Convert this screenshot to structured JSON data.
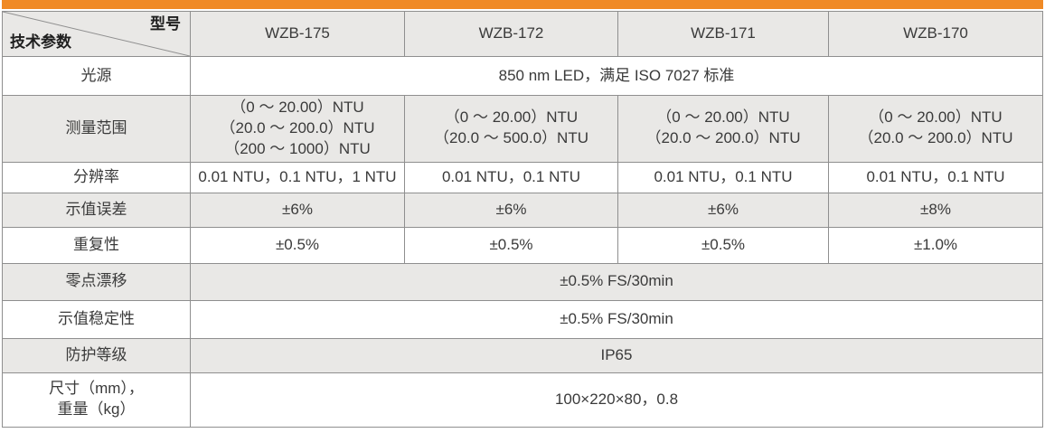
{
  "accent_color": "#F08A25",
  "table": {
    "corner": {
      "top_right": "型号",
      "bottom_left": "技术参数"
    },
    "columns": [
      "WZB-175",
      "WZB-172",
      "WZB-171",
      "WZB-170"
    ],
    "rows": [
      {
        "label_lines": [
          "光源"
        ],
        "span": true,
        "value_lines": [
          "850 nm LED，满足 ISO 7027 标准"
        ],
        "shaded": false
      },
      {
        "label_lines": [
          "测量范围"
        ],
        "span": false,
        "values": [
          [
            "（0 ～ 20.00）NTU",
            "（20.0 ～ 200.0）NTU",
            "（200 ～ 1000）NTU"
          ],
          [
            "（0 ～ 20.00）NTU",
            "（20.0 ～ 500.0）NTU"
          ],
          [
            "（0 ～ 20.00）NTU",
            "（20.0 ～ 200.0）NTU"
          ],
          [
            "（0 ～ 20.00）NTU",
            "（20.0 ～ 200.0）NTU"
          ]
        ],
        "shaded": true
      },
      {
        "label_lines": [
          "分辨率"
        ],
        "span": false,
        "values": [
          [
            "0.01 NTU，0.1 NTU，1 NTU"
          ],
          [
            "0.01 NTU，0.1 NTU"
          ],
          [
            "0.01 NTU，0.1 NTU"
          ],
          [
            "0.01 NTU，0.1 NTU"
          ]
        ],
        "shaded": false
      },
      {
        "label_lines": [
          "示值误差"
        ],
        "span": false,
        "values": [
          [
            "±6%"
          ],
          [
            "±6%"
          ],
          [
            "±6%"
          ],
          [
            "±8%"
          ]
        ],
        "shaded": true
      },
      {
        "label_lines": [
          "重复性"
        ],
        "span": false,
        "values": [
          [
            "±0.5%"
          ],
          [
            "±0.5%"
          ],
          [
            "±0.5%"
          ],
          [
            "±1.0%"
          ]
        ],
        "shaded": false
      },
      {
        "label_lines": [
          "零点漂移"
        ],
        "span": true,
        "value_lines": [
          "±0.5% FS/30min"
        ],
        "shaded": true
      },
      {
        "label_lines": [
          "示值稳定性"
        ],
        "span": true,
        "value_lines": [
          "±0.5% FS/30min"
        ],
        "shaded": false
      },
      {
        "label_lines": [
          "防护等级"
        ],
        "span": true,
        "value_lines": [
          "IP65"
        ],
        "shaded": true
      },
      {
        "label_lines": [
          "尺寸（mm），",
          "重量（kg）"
        ],
        "span": true,
        "value_lines": [
          "100×220×80，0.8"
        ],
        "shaded": false
      }
    ]
  }
}
